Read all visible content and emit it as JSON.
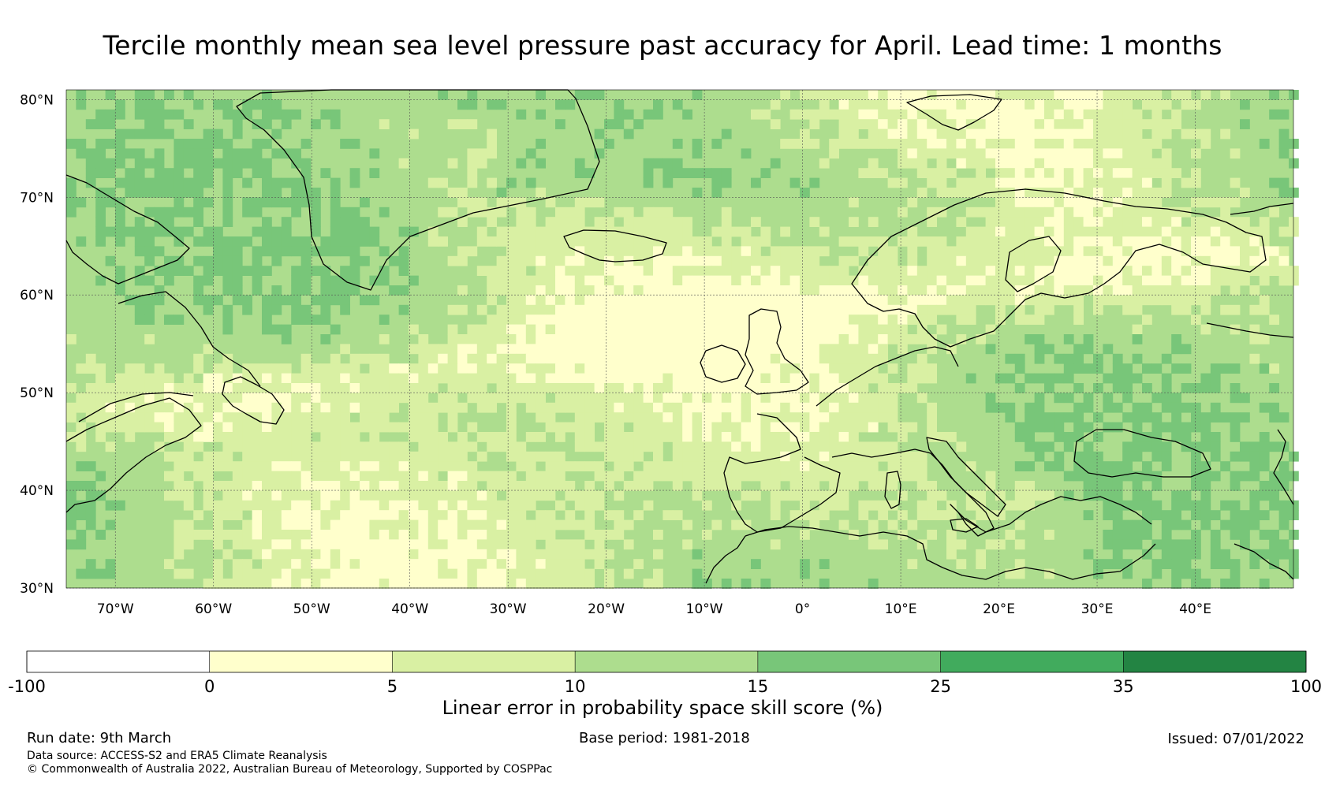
{
  "title": "Tercile monthly mean sea level pressure past accuracy for April. Lead time: 1 months",
  "map": {
    "lon_range": [
      -75,
      50
    ],
    "lat_range": [
      30,
      81
    ],
    "lat_ticks": [
      {
        "value": 80,
        "label": "80°N"
      },
      {
        "value": 70,
        "label": "70°N"
      },
      {
        "value": 60,
        "label": "60°N"
      },
      {
        "value": 50,
        "label": "50°N"
      },
      {
        "value": 40,
        "label": "40°N"
      },
      {
        "value": 30,
        "label": "30°N"
      }
    ],
    "lon_ticks": [
      {
        "value": -70,
        "label": "70°W"
      },
      {
        "value": -60,
        "label": "60°W"
      },
      {
        "value": -50,
        "label": "50°W"
      },
      {
        "value": -40,
        "label": "40°W"
      },
      {
        "value": -30,
        "label": "30°W"
      },
      {
        "value": -20,
        "label": "20°W"
      },
      {
        "value": -10,
        "label": "10°W"
      },
      {
        "value": 0,
        "label": "0°"
      },
      {
        "value": 10,
        "label": "10°E"
      },
      {
        "value": 20,
        "label": "20°E"
      },
      {
        "value": 30,
        "label": "30°E"
      },
      {
        "value": 40,
        "label": "40°E"
      }
    ]
  },
  "colorbar": {
    "label": "Linear error in probability space skill score (%)",
    "bounds": [
      "-100",
      "0",
      "5",
      "10",
      "15",
      "25",
      "35",
      "100"
    ],
    "colors": [
      "#ffffff",
      "#ffffcc",
      "#d9f0a3",
      "#addd8e",
      "#78c679",
      "#41ab5d",
      "#238443"
    ]
  },
  "footer": {
    "run_date": "Run date: 9th March",
    "base_period": "Base period: 1981-2018",
    "issued": "Issued: 07/01/2022",
    "data_source": "Data source: ACCESS-S2 and ERA5 Climate Reanalysis",
    "copyright": "© Commonwealth of Australia 2022, Australian Bureau of Meteorology, Supported by COSPPac"
  }
}
